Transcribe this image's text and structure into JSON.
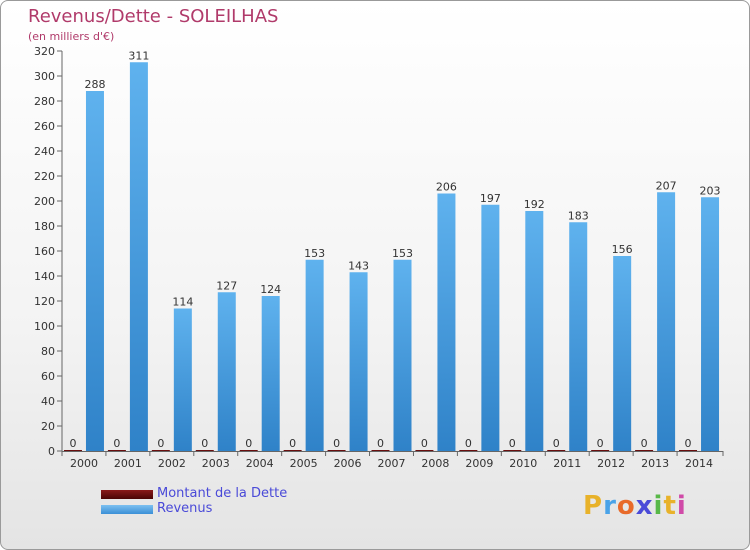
{
  "chart_data": {
    "type": "bar",
    "title": "Revenus/Dette - SOLEILHAS",
    "subtitle": "(en milliers d'€)",
    "categories": [
      "2000",
      "2001",
      "2002",
      "2003",
      "2004",
      "2005",
      "2006",
      "2007",
      "2008",
      "2009",
      "2010",
      "2011",
      "2012",
      "2013",
      "2014"
    ],
    "series": [
      {
        "name": "Montant de la Dette",
        "color": "#6b0a0a",
        "values": [
          0,
          0,
          0,
          0,
          0,
          0,
          0,
          0,
          0,
          0,
          0,
          0,
          0,
          0,
          0
        ]
      },
      {
        "name": "Revenus",
        "color": "#4aa3e8",
        "values": [
          288,
          311,
          114,
          127,
          124,
          153,
          143,
          153,
          206,
          197,
          192,
          183,
          156,
          207,
          203
        ]
      }
    ],
    "ylim": [
      0,
      320
    ],
    "yticks": [
      0,
      20,
      40,
      60,
      80,
      100,
      120,
      140,
      160,
      180,
      200,
      220,
      240,
      260,
      280,
      300,
      320
    ],
    "grid": false,
    "legend_position": "bottom-left"
  },
  "legend": {
    "items": [
      {
        "label": "Montant de la Dette",
        "color": "#6b0a0a"
      },
      {
        "label": "Revenus",
        "color": "#4aa3e8"
      }
    ]
  },
  "logo": {
    "letters": [
      "P",
      "r",
      "o",
      "x",
      "i",
      "t",
      "i"
    ],
    "colors": [
      "#e8b22a",
      "#4aa3e8",
      "#e86a2a",
      "#4a4ad8",
      "#58b848",
      "#e8b22a",
      "#d04aa8"
    ]
  }
}
